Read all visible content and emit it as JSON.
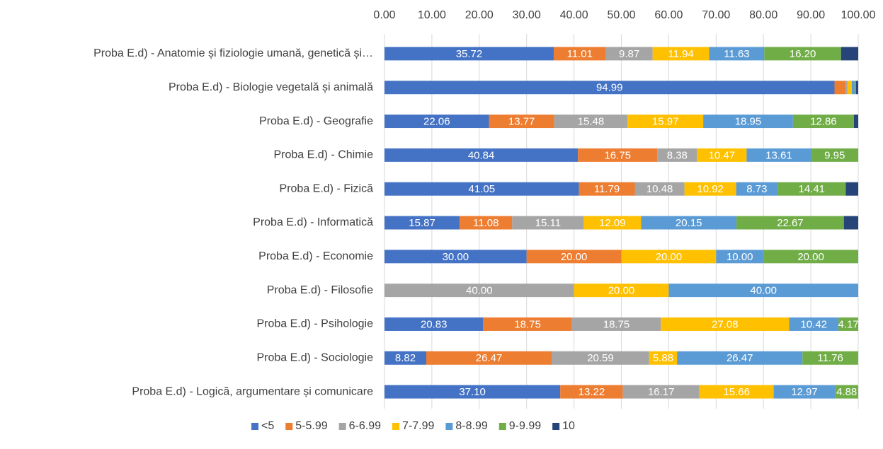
{
  "chart_data": {
    "type": "stacked_bar_horizontal",
    "categories": [
      "Proba E.d) - Anatomie și fiziologie umană, genetică și…",
      "Proba E.d) - Biologie vegetală și animală",
      "Proba E.d) - Geografie",
      "Proba E.d) - Chimie",
      "Proba E.d) - Fizică",
      "Proba E.d) - Informatică",
      "Proba E.d) - Economie",
      "Proba E.d) - Filosofie",
      "Proba E.d) - Psihologie",
      "Proba E.d) - Sociologie",
      "Proba E.d) - Logică, argumentare și comunicare"
    ],
    "series": [
      {
        "name": "<5",
        "color": "#4472c4",
        "values": [
          35.72,
          94.99,
          22.06,
          40.84,
          41.05,
          15.87,
          30,
          0,
          20.83,
          8.82,
          37.1
        ],
        "value_labels": [
          "35.72",
          "94.99",
          "22.06",
          "40.84",
          "41.05",
          "15.87",
          "30.00",
          null,
          "20.83",
          "8.82",
          "37.10"
        ]
      },
      {
        "name": "5-5.99",
        "color": "#ed7d31",
        "values": [
          11.01,
          2.3,
          13.77,
          16.75,
          11.79,
          11.08,
          20,
          0,
          18.75,
          26.47,
          13.22
        ],
        "value_labels": [
          "11.01",
          null,
          "13.77",
          "16.75",
          "11.79",
          "11.08",
          "20.00",
          null,
          "18.75",
          "26.47",
          "13.22"
        ]
      },
      {
        "name": "6-6.99",
        "color": "#a5a5a5",
        "values": [
          9.87,
          0.45,
          15.48,
          8.38,
          10.48,
          15.11,
          0,
          40,
          18.75,
          20.59,
          16.17
        ],
        "value_labels": [
          "9.87",
          null,
          "15.48",
          "8.38",
          "10.48",
          "15.11",
          null,
          "40.00",
          "18.75",
          "20.59",
          "16.17"
        ]
      },
      {
        "name": "7-7.99",
        "color": "#ffc000",
        "values": [
          11.94,
          0.9,
          15.97,
          10.47,
          10.92,
          12.09,
          20,
          20,
          27.08,
          5.88,
          15.66
        ],
        "value_labels": [
          "11.94",
          null,
          "15.97",
          "10.47",
          "10.92",
          "12.09",
          "20.00",
          "20.00",
          "27.08",
          "5.88",
          "15.66"
        ]
      },
      {
        "name": "8-8.99",
        "color": "#5b9bd5",
        "values": [
          11.63,
          0.6,
          18.95,
          13.61,
          8.73,
          20.15,
          10,
          40,
          10.42,
          26.47,
          12.97
        ],
        "value_labels": [
          "11.63",
          null,
          "18.95",
          "13.61",
          "8.73",
          "20.15",
          "10.00",
          "40.00",
          "10.42",
          "26.47",
          "12.97"
        ]
      },
      {
        "name": "9-9.99",
        "color": "#70ad47",
        "values": [
          16.2,
          0.3,
          12.86,
          9.95,
          14.41,
          22.67,
          20,
          0,
          4.17,
          11.76,
          4.88
        ],
        "value_labels": [
          "16.20",
          null,
          "12.86",
          "9.95",
          "14.41",
          "22.67",
          "20.00",
          null,
          "4.17",
          "11.76",
          "4.88"
        ]
      },
      {
        "name": "10",
        "color": "#264478",
        "values": [
          3.63,
          0.45,
          0.91,
          0,
          2.62,
          3.03,
          0,
          0,
          0,
          0,
          0
        ],
        "value_labels": [
          null,
          null,
          null,
          null,
          null,
          null,
          null,
          null,
          null,
          null,
          null
        ]
      }
    ],
    "xlim": [
      0,
      100
    ],
    "xticks": [
      {
        "value": 0,
        "label": "0.00"
      },
      {
        "value": 10,
        "label": "10.00"
      },
      {
        "value": 20,
        "label": "20.00"
      },
      {
        "value": 30,
        "label": "30.00"
      },
      {
        "value": 40,
        "label": "40.00"
      },
      {
        "value": 50,
        "label": "50.00"
      },
      {
        "value": 60,
        "label": "60.00"
      },
      {
        "value": 70,
        "label": "70.00"
      },
      {
        "value": 80,
        "label": "80.00"
      },
      {
        "value": 90,
        "label": "90.00"
      },
      {
        "value": 100,
        "label": "100.00"
      }
    ],
    "grid": true,
    "legend": "bottom"
  }
}
